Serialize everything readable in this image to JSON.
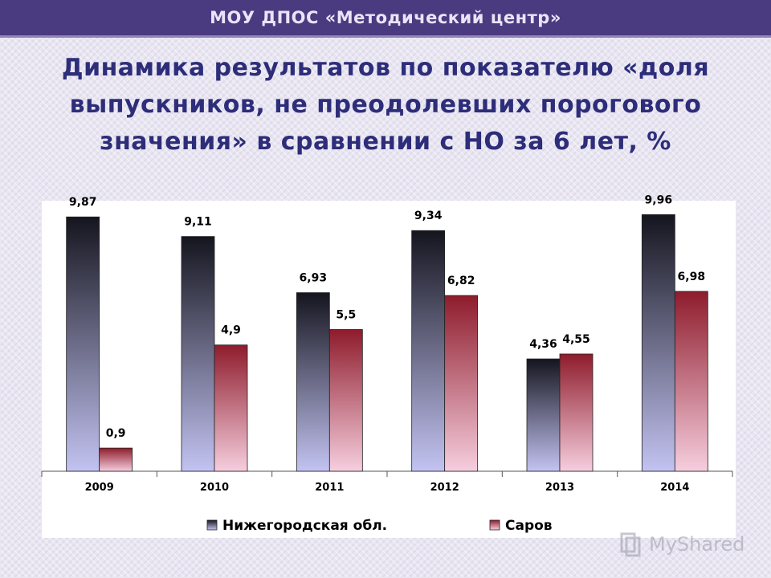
{
  "header": {
    "title": "МОУ ДПОС «Методический центр»"
  },
  "slide": {
    "title": "Динамика результатов по показателю «доля выпускников, не преодолевших порогового значения» в сравнении с НО за 6 лет, %"
  },
  "watermark": {
    "text": "MyShared"
  },
  "chart_data": {
    "type": "bar",
    "categories": [
      "2009",
      "2010",
      "2011",
      "2012",
      "2013",
      "2014"
    ],
    "series": [
      {
        "name": "Нижегородская обл.",
        "values": [
          9.87,
          9.11,
          6.93,
          9.34,
          4.36,
          9.96
        ],
        "labels": [
          "9,87",
          "9,11",
          "6,93",
          "9,34",
          "4,36",
          "9,96"
        ],
        "color_top": "#15151f",
        "color_bottom": "#c3c3f2"
      },
      {
        "name": "Саров",
        "values": [
          0.9,
          4.9,
          5.5,
          6.82,
          4.55,
          6.98
        ],
        "labels": [
          "0,9",
          "4,9",
          "5,5",
          "6,82",
          "4,55",
          "6,98"
        ],
        "color_top": "#8e1c2c",
        "color_bottom": "#f6cede"
      }
    ],
    "legend_position": "bottom",
    "grid": false,
    "ylim": [
      0,
      10.5
    ]
  }
}
